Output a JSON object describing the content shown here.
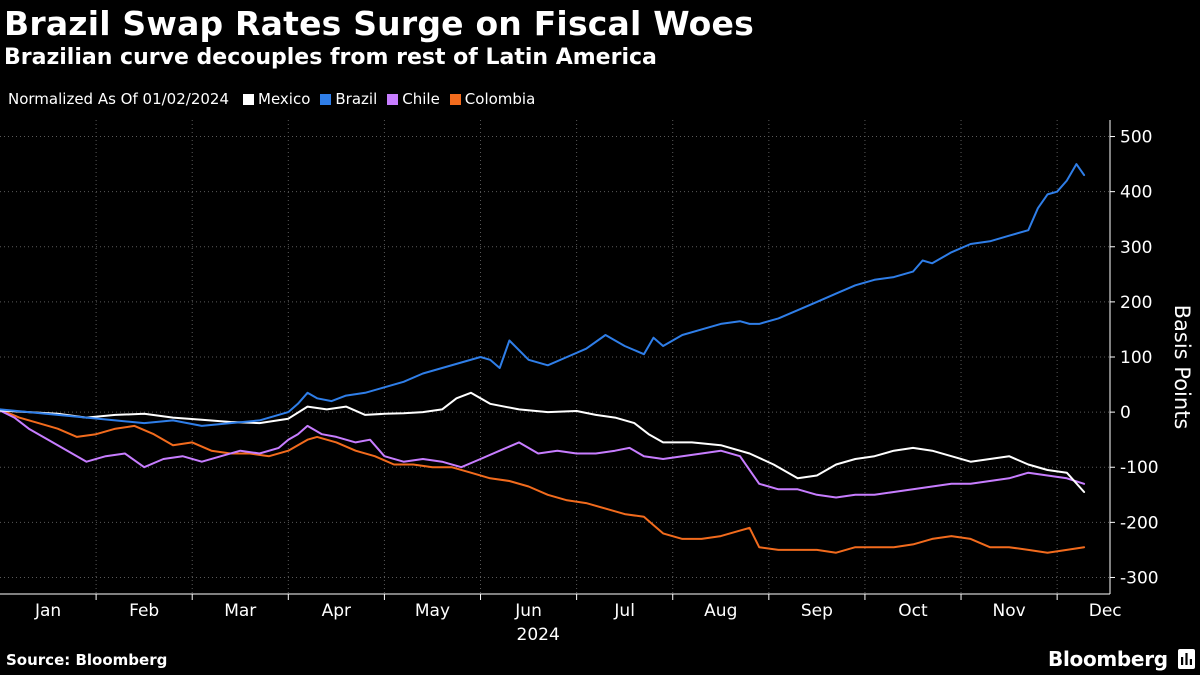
{
  "header": {
    "title": "Brazil Swap Rates Surge on Fiscal Woes",
    "subtitle": "Brazilian curve decouples from rest of Latin America"
  },
  "legend": {
    "note": "Normalized As Of 01/02/2024",
    "items": [
      {
        "label": "Mexico",
        "color": "#ffffff"
      },
      {
        "label": "Brazil",
        "color": "#2f7ee8"
      },
      {
        "label": "Chile",
        "color": "#c77dff"
      },
      {
        "label": "Colombia",
        "color": "#f26b1d"
      }
    ]
  },
  "footer": {
    "source": "Source: Bloomberg",
    "brand": "Bloomberg"
  },
  "chart_data": {
    "type": "line",
    "title": "Brazil Swap Rates Surge on Fiscal Woes",
    "ylabel": "Basis Points",
    "xlabel": "2024",
    "ylim": [
      -330,
      530
    ],
    "xlim": [
      1,
      12.55
    ],
    "y_ticks": [
      500,
      400,
      300,
      200,
      100,
      0,
      -100,
      -200,
      -300
    ],
    "x_ticks": [
      "Jan",
      "Feb",
      "Mar",
      "Apr",
      "May",
      "Jun",
      "Jul",
      "Aug",
      "Sep",
      "Oct",
      "Nov",
      "Dec"
    ],
    "year_label": "2024",
    "grid": true,
    "series": [
      {
        "name": "Mexico",
        "color": "#ffffff",
        "x": [
          1.0,
          1.3,
          1.6,
          1.9,
          2.2,
          2.5,
          2.8,
          3.1,
          3.4,
          3.7,
          4.0,
          4.2,
          4.4,
          4.6,
          4.8,
          5.0,
          5.2,
          5.4,
          5.6,
          5.75,
          5.9,
          6.1,
          6.4,
          6.7,
          7.0,
          7.2,
          7.4,
          7.6,
          7.75,
          7.9,
          8.2,
          8.5,
          8.8,
          9.05,
          9.3,
          9.5,
          9.7,
          9.9,
          10.1,
          10.3,
          10.5,
          10.7,
          10.9,
          11.1,
          11.3,
          11.5,
          11.7,
          11.9,
          12.1,
          12.28
        ],
        "y": [
          3,
          0,
          -3,
          -10,
          -5,
          -3,
          -10,
          -14,
          -18,
          -20,
          -12,
          10,
          5,
          10,
          -5,
          -3,
          -2,
          0,
          5,
          25,
          35,
          15,
          5,
          0,
          2,
          -5,
          -10,
          -20,
          -40,
          -55,
          -55,
          -60,
          -75,
          -95,
          -120,
          -115,
          -95,
          -85,
          -80,
          -70,
          -65,
          -70,
          -80,
          -90,
          -85,
          -80,
          -95,
          -105,
          -110,
          -145
        ]
      },
      {
        "name": "Brazil",
        "color": "#2f7ee8",
        "x": [
          1.0,
          1.3,
          1.6,
          1.9,
          2.2,
          2.5,
          2.8,
          3.1,
          3.4,
          3.7,
          4.0,
          4.1,
          4.2,
          4.3,
          4.45,
          4.6,
          4.8,
          5.0,
          5.2,
          5.4,
          5.6,
          5.8,
          6.0,
          6.1,
          6.2,
          6.3,
          6.5,
          6.7,
          6.9,
          7.1,
          7.3,
          7.5,
          7.7,
          7.8,
          7.9,
          8.1,
          8.3,
          8.5,
          8.7,
          8.8,
          8.9,
          9.1,
          9.3,
          9.5,
          9.7,
          9.9,
          10.1,
          10.3,
          10.5,
          10.6,
          10.7,
          10.9,
          11.1,
          11.3,
          11.5,
          11.7,
          11.8,
          11.9,
          12.0,
          12.1,
          12.2,
          12.28
        ],
        "y": [
          5,
          0,
          -5,
          -10,
          -15,
          -20,
          -15,
          -25,
          -20,
          -15,
          0,
          15,
          35,
          25,
          20,
          30,
          35,
          45,
          55,
          70,
          80,
          90,
          100,
          95,
          80,
          130,
          95,
          85,
          100,
          115,
          140,
          120,
          105,
          135,
          120,
          140,
          150,
          160,
          165,
          160,
          160,
          170,
          185,
          200,
          215,
          230,
          240,
          245,
          255,
          275,
          270,
          290,
          305,
          310,
          320,
          330,
          370,
          395,
          400,
          420,
          450,
          430
        ]
      },
      {
        "name": "Chile",
        "color": "#c77dff",
        "x": [
          1.0,
          1.15,
          1.3,
          1.5,
          1.7,
          1.9,
          2.1,
          2.3,
          2.5,
          2.7,
          2.9,
          3.1,
          3.3,
          3.5,
          3.7,
          3.9,
          4.0,
          4.1,
          4.2,
          4.35,
          4.5,
          4.7,
          4.85,
          5.0,
          5.2,
          5.4,
          5.6,
          5.8,
          6.0,
          6.2,
          6.4,
          6.6,
          6.8,
          7.0,
          7.2,
          7.4,
          7.55,
          7.7,
          7.9,
          8.1,
          8.3,
          8.5,
          8.7,
          8.9,
          9.1,
          9.3,
          9.5,
          9.7,
          9.9,
          10.1,
          10.3,
          10.5,
          10.7,
          10.9,
          11.1,
          11.3,
          11.5,
          11.7,
          11.9,
          12.1,
          12.28
        ],
        "y": [
          3,
          -10,
          -30,
          -50,
          -70,
          -90,
          -80,
          -75,
          -100,
          -85,
          -80,
          -90,
          -80,
          -70,
          -75,
          -65,
          -50,
          -40,
          -25,
          -40,
          -45,
          -55,
          -50,
          -80,
          -90,
          -85,
          -90,
          -100,
          -85,
          -70,
          -55,
          -75,
          -70,
          -75,
          -75,
          -70,
          -65,
          -80,
          -85,
          -80,
          -75,
          -70,
          -80,
          -130,
          -140,
          -140,
          -150,
          -155,
          -150,
          -150,
          -145,
          -140,
          -135,
          -130,
          -130,
          -125,
          -120,
          -110,
          -115,
          -120,
          -130
        ]
      },
      {
        "name": "Colombia",
        "color": "#f26b1d",
        "x": [
          1.0,
          1.2,
          1.4,
          1.6,
          1.8,
          2.0,
          2.2,
          2.4,
          2.6,
          2.8,
          3.0,
          3.2,
          3.4,
          3.6,
          3.8,
          4.0,
          4.1,
          4.2,
          4.3,
          4.5,
          4.7,
          4.9,
          5.1,
          5.3,
          5.5,
          5.7,
          5.9,
          6.1,
          6.3,
          6.5,
          6.7,
          6.9,
          7.1,
          7.3,
          7.5,
          7.7,
          7.8,
          7.9,
          8.1,
          8.3,
          8.5,
          8.7,
          8.8,
          8.9,
          9.1,
          9.3,
          9.5,
          9.7,
          9.9,
          10.1,
          10.3,
          10.5,
          10.7,
          10.9,
          11.1,
          11.3,
          11.5,
          11.7,
          11.9,
          12.1,
          12.28
        ],
        "y": [
          5,
          -10,
          -20,
          -30,
          -45,
          -40,
          -30,
          -25,
          -40,
          -60,
          -55,
          -70,
          -75,
          -75,
          -80,
          -70,
          -60,
          -50,
          -45,
          -55,
          -70,
          -80,
          -95,
          -95,
          -100,
          -100,
          -110,
          -120,
          -125,
          -135,
          -150,
          -160,
          -165,
          -175,
          -185,
          -190,
          -205,
          -220,
          -230,
          -230,
          -225,
          -215,
          -210,
          -245,
          -250,
          -250,
          -250,
          -255,
          -245,
          -245,
          -245,
          -240,
          -230,
          -225,
          -230,
          -245,
          -245,
          -250,
          -255,
          -250,
          -245
        ]
      }
    ]
  }
}
